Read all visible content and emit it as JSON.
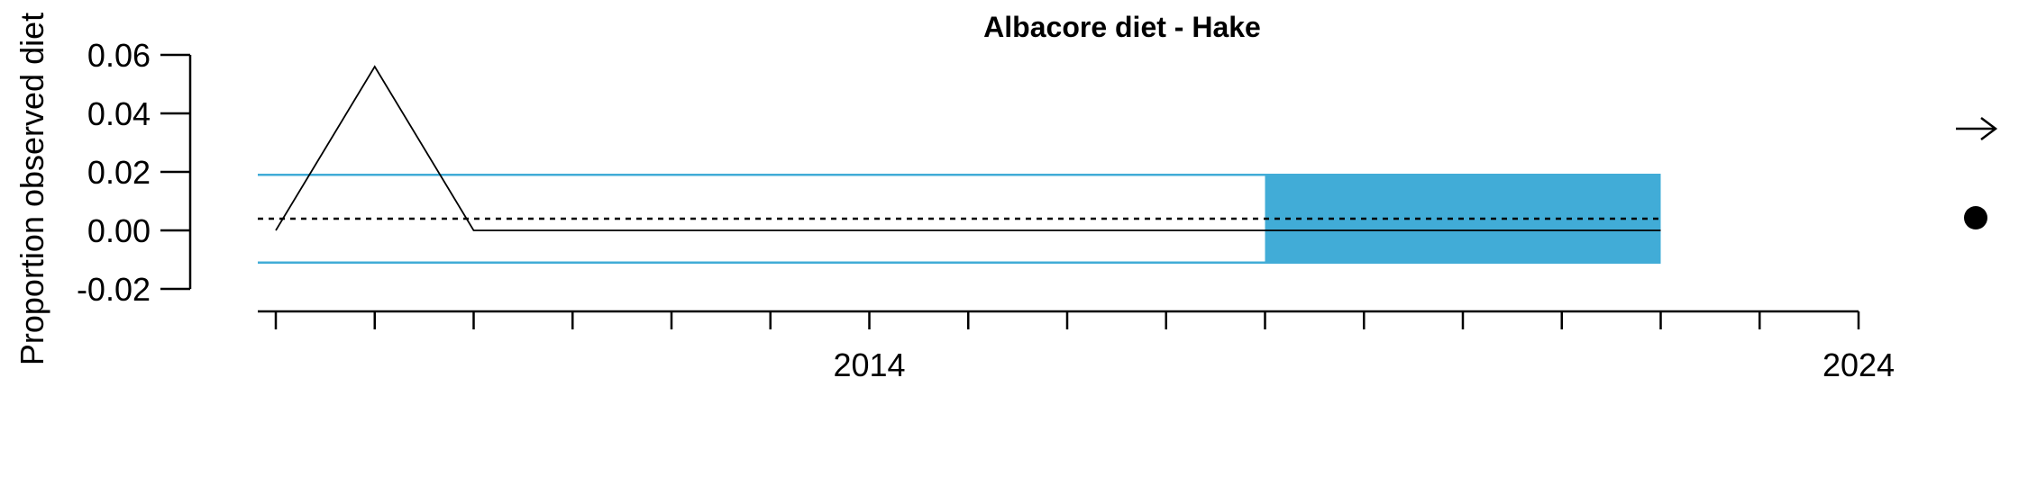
{
  "chart_data": {
    "type": "line",
    "title": "Albacore diet - Hake",
    "ylabel": "Proportion observed diet",
    "xlabel": "",
    "x": [
      2008,
      2009,
      2010,
      2011,
      2012,
      2013,
      2014,
      2015,
      2016,
      2017,
      2018,
      2019,
      2020,
      2021,
      2022
    ],
    "series": [
      {
        "values": [
          0.0,
          0.056,
          0.0,
          0.0,
          0.0,
          0.0,
          0.0,
          0.0,
          0.0,
          0.0,
          0.0,
          0.0,
          0.0,
          0.0,
          0.0
        ]
      }
    ],
    "mean": 0.004,
    "upper_sd": 0.019,
    "lower_sd": -0.011,
    "recent_period": [
      2018,
      2022
    ],
    "ylim": [
      -0.02,
      0.06
    ],
    "yticks": [
      "-0.02",
      "0.00",
      "0.02",
      "0.04",
      "0.06"
    ],
    "xticks_labeled": [
      "2014",
      "2024"
    ],
    "xlim": [
      2008,
      2024
    ],
    "grid": false,
    "colors": {
      "sd_band": "#41acd7",
      "series": "#000000",
      "mean": "#000000"
    },
    "indicators": {
      "trend_icon": "right-arrow-icon",
      "status_icon": "filled-circle-icon"
    }
  }
}
